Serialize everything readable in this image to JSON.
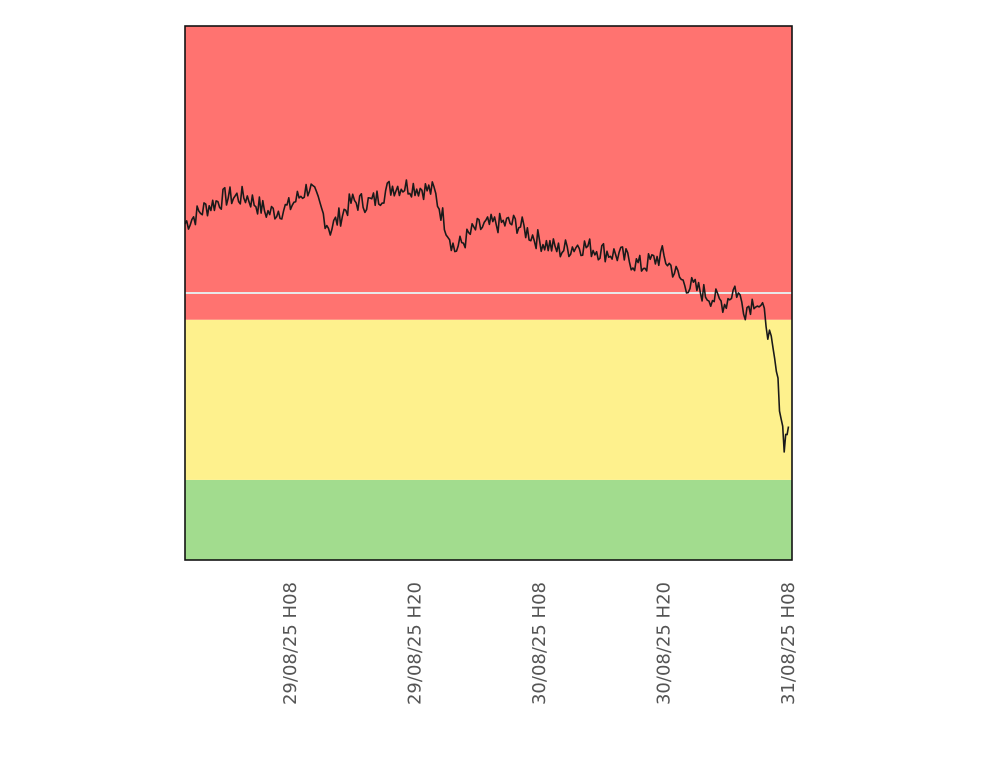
{
  "chart_data": {
    "type": "line",
    "x_axis": {
      "type": "datetime",
      "range": [
        "2025-08-28 22:00",
        "2025-08-31 08:30"
      ],
      "ticks": [
        {
          "label": "29/08/25 H08",
          "x": "2025-08-29 08:00"
        },
        {
          "label": "29/08/25 H20",
          "x": "2025-08-29 20:00"
        },
        {
          "label": "30/08/25 H08",
          "x": "2025-08-30 08:00"
        },
        {
          "label": "30/08/25 H20",
          "x": "2025-08-30 20:00"
        },
        {
          "label": "31/08/25 H08",
          "x": "2025-08-31 08:00"
        }
      ]
    },
    "y_axis": {
      "range": [
        0,
        100
      ],
      "tick_labels_shown": false
    },
    "bands": [
      {
        "name": "green",
        "from": 0,
        "to": 15,
        "color": "#a2dc8e"
      },
      {
        "name": "yellow",
        "from": 15,
        "to": 45,
        "color": "#fef18d"
      },
      {
        "name": "red",
        "from": 45,
        "to": 100,
        "color": "#ff7370"
      }
    ],
    "reference_line": {
      "y": 50,
      "color": "#e8e8e8"
    },
    "grid": false,
    "legend": "none",
    "series": [
      {
        "color": "#1a1a1a",
        "points": [
          [
            "2025-08-28 22:00",
            63
          ],
          [
            "2025-08-29 00:00",
            66
          ],
          [
            "2025-08-29 02:00",
            68
          ],
          [
            "2025-08-29 04:00",
            68
          ],
          [
            "2025-08-29 06:00",
            65
          ],
          [
            "2025-08-29 08:00",
            66
          ],
          [
            "2025-08-29 10:00",
            70
          ],
          [
            "2025-08-29 12:00",
            62
          ],
          [
            "2025-08-29 14:00",
            67
          ],
          [
            "2025-08-29 16:00",
            67
          ],
          [
            "2025-08-29 18:00",
            70
          ],
          [
            "2025-08-29 20:00",
            70
          ],
          [
            "2025-08-29 22:00",
            69
          ],
          [
            "2025-08-30 00:00",
            58
          ],
          [
            "2025-08-30 02:00",
            62
          ],
          [
            "2025-08-30 04:00",
            63
          ],
          [
            "2025-08-30 06:00",
            63
          ],
          [
            "2025-08-30 08:00",
            60
          ],
          [
            "2025-08-30 10:00",
            58
          ],
          [
            "2025-08-30 12:00",
            59
          ],
          [
            "2025-08-30 14:00",
            58
          ],
          [
            "2025-08-30 16:00",
            57
          ],
          [
            "2025-08-30 18:00",
            55
          ],
          [
            "2025-08-30 20:00",
            57
          ],
          [
            "2025-08-30 22:00",
            52
          ],
          [
            "2025-08-31 00:00",
            50
          ],
          [
            "2025-08-31 02:00",
            48
          ],
          [
            "2025-08-31 03:00",
            51
          ],
          [
            "2025-08-31 04:00",
            47
          ],
          [
            "2025-08-31 05:00",
            49
          ],
          [
            "2025-08-31 06:00",
            45
          ],
          [
            "2025-08-31 07:00",
            35
          ],
          [
            "2025-08-31 07:45",
            22
          ],
          [
            "2025-08-31 08:10",
            25
          ]
        ]
      }
    ]
  }
}
